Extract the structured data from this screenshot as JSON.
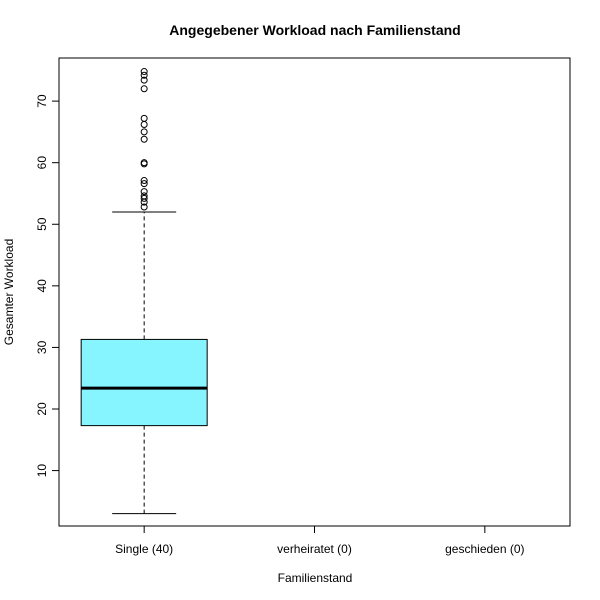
{
  "chart_data": {
    "type": "boxplot",
    "title": "Angegebener Workload nach Familienstand",
    "xlabel": "Familienstand",
    "ylabel": "Gesamter Workload",
    "categories": [
      "Single (40)",
      "verheiratet (0)",
      "geschieden (0)"
    ],
    "yticks": [
      10,
      20,
      30,
      40,
      50,
      60,
      70
    ],
    "ylim": [
      1,
      77
    ],
    "box_color": "#87f5ff",
    "boxes": [
      {
        "category": "Single (40)",
        "whisker_low": 3,
        "q1": 17.3,
        "median": 23.4,
        "q3": 31.3,
        "whisker_high": 52,
        "outliers": [
          52.8,
          53.6,
          54.2,
          54.6,
          55.3,
          56.6,
          57.1,
          59.8,
          60.0,
          63.8,
          65.0,
          66.2,
          67.2,
          72.0,
          73.4,
          74.2,
          74.8
        ]
      },
      {
        "category": "verheiratet (0)"
      },
      {
        "category": "geschieden (0)"
      }
    ],
    "grid": false,
    "legend": "none"
  }
}
